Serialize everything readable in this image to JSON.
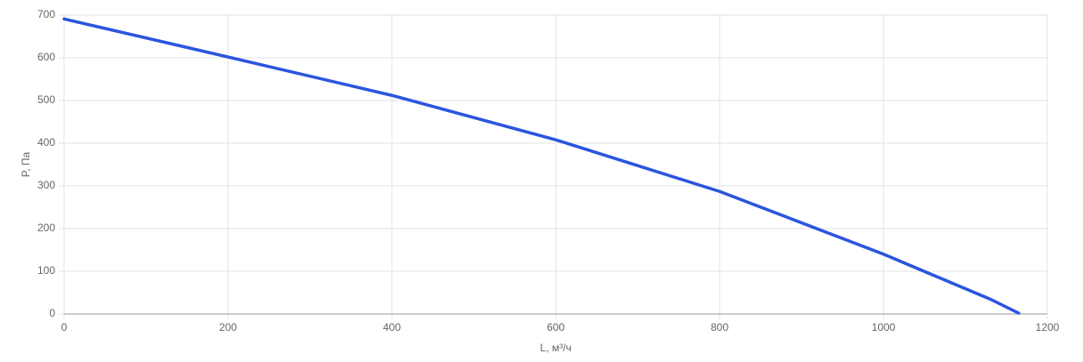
{
  "chart_data": {
    "type": "line",
    "x_label": "L, м³/ч",
    "y_label": "P, Па",
    "x": [
      0,
      200,
      400,
      600,
      800,
      1000,
      1130,
      1165
    ],
    "series": [
      {
        "color": "#2b55de",
        "values": [
          691,
          602,
          512,
          408,
          287,
          140,
          35,
          2
        ]
      }
    ],
    "xlim": [
      0,
      1200
    ],
    "xticks": [
      0,
      200,
      400,
      600,
      800,
      1000,
      1200
    ],
    "ylim": [
      0,
      700
    ],
    "yticks": [
      0,
      100,
      200,
      300,
      400,
      500,
      600,
      700
    ],
    "grid": true
  }
}
